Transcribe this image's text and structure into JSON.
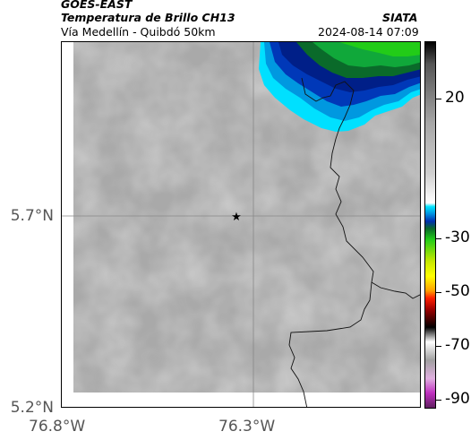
{
  "header": {
    "satellite": "GOES-EAST",
    "product": "Temperatura de Brillo CH13",
    "region": "Vía Medellín - Quibdó 50km",
    "org": "SIATA",
    "datetime": "2024-08-14 07:09"
  },
  "map": {
    "y_ticks": [
      {
        "value": 5.7,
        "label": "5.7°N"
      },
      {
        "value": 5.2,
        "label": "5.2°N"
      }
    ],
    "x_ticks": [
      {
        "value": -76.8,
        "label": "76.8°W"
      },
      {
        "value": -76.3,
        "label": "76.3°W"
      }
    ],
    "marker": "star-icon",
    "cloud_colors": [
      "#00e5ff",
      "#0090e0",
      "#0030b0",
      "#00208a",
      "#007a3a",
      "#00b830",
      "#22d000"
    ]
  },
  "colorbar": {
    "labels": [
      "20",
      "-30",
      "-50",
      "-70",
      "-90"
    ]
  }
}
